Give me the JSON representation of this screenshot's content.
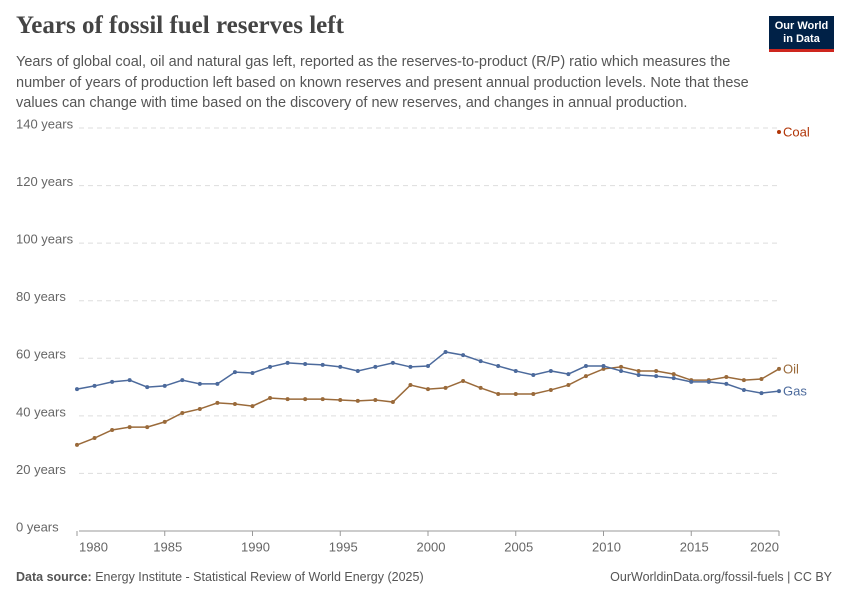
{
  "chart_data": {
    "type": "line",
    "title": "Years of fossil fuel reserves left",
    "subtitle": "Years of global coal, oil and natural gas left, reported as the reserves-to-product (R/P) ratio which measures the number of years of production left based on known reserves and present annual production levels. Note that these values can change with time based on the discovery of new reserves, and changes in annual production.",
    "source_label": "Data source:",
    "source": "Energy Institute - Statistical Review of World Energy (2025)",
    "footer_right": "OurWorldinData.org/fossil-fuels | CC BY",
    "x": [
      1980,
      1981,
      1982,
      1983,
      1984,
      1985,
      1986,
      1987,
      1988,
      1989,
      1990,
      1991,
      1992,
      1993,
      1994,
      1995,
      1996,
      1997,
      1998,
      1999,
      2000,
      2001,
      2002,
      2003,
      2004,
      2005,
      2006,
      2007,
      2008,
      2009,
      2010,
      2011,
      2012,
      2013,
      2014,
      2015,
      2016,
      2017,
      2018,
      2019,
      2020
    ],
    "series": [
      {
        "name": "Coal",
        "color": "#b13507",
        "values": [
          null,
          null,
          null,
          null,
          null,
          null,
          null,
          null,
          null,
          null,
          null,
          null,
          null,
          null,
          null,
          null,
          null,
          null,
          null,
          null,
          null,
          null,
          null,
          null,
          null,
          null,
          null,
          null,
          null,
          null,
          null,
          null,
          null,
          null,
          null,
          null,
          null,
          null,
          null,
          null,
          138.6
        ]
      },
      {
        "name": "Oil",
        "color": "#9a6a3a",
        "values": [
          29.9,
          32.3,
          35.1,
          36.1,
          36.1,
          37.9,
          41.0,
          42.4,
          44.5,
          44.1,
          43.4,
          46.2,
          45.8,
          45.8,
          45.8,
          45.5,
          45.2,
          45.5,
          44.8,
          50.7,
          49.3,
          49.7,
          52.1,
          49.7,
          47.6,
          47.6,
          47.6,
          49.0,
          50.7,
          53.8,
          56.3,
          57.0,
          55.6,
          55.6,
          54.5,
          52.4,
          52.4,
          53.5,
          52.4,
          52.8,
          56.3
        ]
      },
      {
        "name": "Gas",
        "color": "#4c6a9c",
        "values": [
          49.3,
          50.4,
          51.8,
          52.4,
          50.0,
          50.4,
          52.4,
          51.1,
          51.1,
          55.2,
          54.9,
          57.0,
          58.4,
          58.0,
          57.7,
          57.0,
          55.6,
          57.0,
          58.4,
          57.0,
          57.3,
          62.2,
          61.1,
          59.0,
          57.3,
          55.6,
          54.2,
          55.6,
          54.5,
          57.3,
          57.3,
          55.6,
          54.2,
          53.8,
          53.1,
          51.8,
          51.8,
          51.1,
          49.0,
          47.9,
          48.6
        ]
      }
    ],
    "xlim": [
      1980,
      2020
    ],
    "xticks": [
      1980,
      1985,
      1990,
      1995,
      2000,
      2005,
      2010,
      2015,
      2020
    ],
    "ylim": [
      0,
      140
    ],
    "yticks": [
      {
        "value": 0,
        "label": "0 years"
      },
      {
        "value": 20,
        "label": "20 years"
      },
      {
        "value": 40,
        "label": "40 years"
      },
      {
        "value": 60,
        "label": "60 years"
      },
      {
        "value": 80,
        "label": "80 years"
      },
      {
        "value": 100,
        "label": "100 years"
      },
      {
        "value": 120,
        "label": "120 years"
      },
      {
        "value": 140,
        "label": "140 years"
      }
    ],
    "grid": true
  },
  "logo": [
    "Our World",
    "in Data"
  ]
}
